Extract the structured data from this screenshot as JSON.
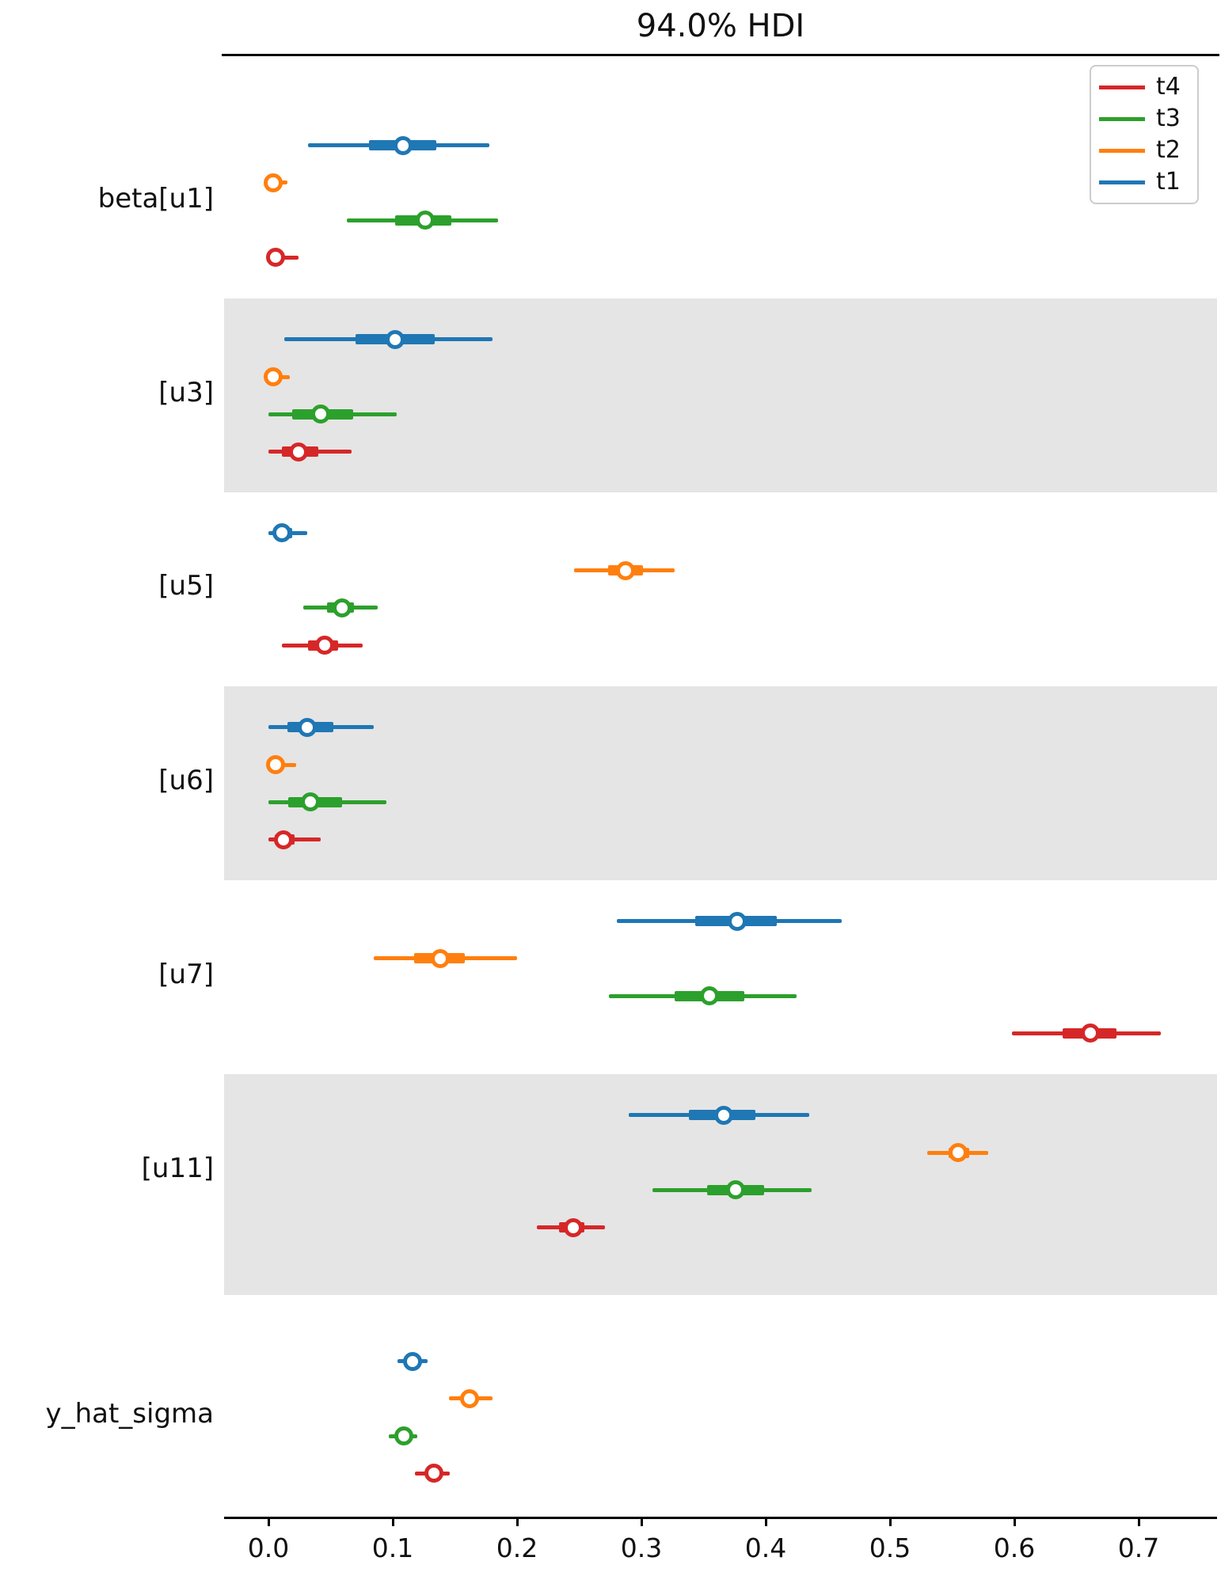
{
  "chart_data": {
    "type": "forest",
    "title": "94.0% HDI",
    "hdi_probability": "94.0%",
    "xlabel": "",
    "x_ticks": [
      0.0,
      0.1,
      0.2,
      0.3,
      0.4,
      0.5,
      0.6,
      0.7
    ],
    "xlim": [
      -0.036,
      0.763
    ],
    "grid": false,
    "legend_position": "top-right",
    "series_colors": {
      "t1": "#1f77b4",
      "t2": "#ff7f0e",
      "t3": "#2ca02c",
      "t4": "#d62728"
    },
    "legend": {
      "items": [
        {
          "label": "t4",
          "color": "#d62728"
        },
        {
          "label": "t3",
          "color": "#2ca02c"
        },
        {
          "label": "t2",
          "color": "#ff7f0e"
        },
        {
          "label": "t1",
          "color": "#1f77b4"
        }
      ]
    },
    "band_color": "#e5e5e5",
    "groups": [
      {
        "label": "beta[u1]",
        "shaded": false,
        "rows": [
          {
            "series": "t1",
            "hdi": [
              0.032,
              0.178
            ],
            "quartile": [
              0.081,
              0.135
            ],
            "point": 0.108
          },
          {
            "series": "t2",
            "hdi": [
              0.001,
              0.015
            ],
            "quartile": [
              0.002,
              0.008
            ],
            "point": 0.004
          },
          {
            "series": "t3",
            "hdi": [
              0.063,
              0.185
            ],
            "quartile": [
              0.102,
              0.147
            ],
            "point": 0.126
          },
          {
            "series": "t4",
            "hdi": [
              0.0,
              0.024
            ],
            "quartile": [
              0.003,
              0.011
            ],
            "point": 0.006
          }
        ]
      },
      {
        "label": "[u3]",
        "shaded": true,
        "rows": [
          {
            "series": "t1",
            "hdi": [
              0.013,
              0.18
            ],
            "quartile": [
              0.07,
              0.134
            ],
            "point": 0.102
          },
          {
            "series": "t2",
            "hdi": [
              0.001,
              0.017
            ],
            "quartile": [
              0.002,
              0.008
            ],
            "point": 0.004
          },
          {
            "series": "t3",
            "hdi": [
              0.0,
              0.103
            ],
            "quartile": [
              0.019,
              0.068
            ],
            "point": 0.042
          },
          {
            "series": "t4",
            "hdi": [
              0.0,
              0.067
            ],
            "quartile": [
              0.011,
              0.04
            ],
            "point": 0.024
          }
        ]
      },
      {
        "label": "[u5]",
        "shaded": false,
        "rows": [
          {
            "series": "t1",
            "hdi": [
              0.0,
              0.031
            ],
            "quartile": [
              0.005,
              0.019
            ],
            "point": 0.011
          },
          {
            "series": "t2",
            "hdi": [
              0.246,
              0.327
            ],
            "quartile": [
              0.273,
              0.301
            ],
            "point": 0.287
          },
          {
            "series": "t3",
            "hdi": [
              0.028,
              0.088
            ],
            "quartile": [
              0.047,
              0.069
            ],
            "point": 0.059
          },
          {
            "series": "t4",
            "hdi": [
              0.011,
              0.076
            ],
            "quartile": [
              0.032,
              0.056
            ],
            "point": 0.045
          }
        ]
      },
      {
        "label": "[u6]",
        "shaded": true,
        "rows": [
          {
            "series": "t1",
            "hdi": [
              0.0,
              0.085
            ],
            "quartile": [
              0.015,
              0.052
            ],
            "point": 0.031
          },
          {
            "series": "t2",
            "hdi": [
              0.001,
              0.022
            ],
            "quartile": [
              0.002,
              0.009
            ],
            "point": 0.006
          },
          {
            "series": "t3",
            "hdi": [
              0.0,
              0.095
            ],
            "quartile": [
              0.016,
              0.059
            ],
            "point": 0.034
          },
          {
            "series": "t4",
            "hdi": [
              0.0,
              0.042
            ],
            "quartile": [
              0.005,
              0.021
            ],
            "point": 0.012
          }
        ]
      },
      {
        "label": "[u7]",
        "shaded": false,
        "rows": [
          {
            "series": "t1",
            "hdi": [
              0.28,
              0.461
            ],
            "quartile": [
              0.343,
              0.409
            ],
            "point": 0.377
          },
          {
            "series": "t2",
            "hdi": [
              0.085,
              0.2
            ],
            "quartile": [
              0.117,
              0.158
            ],
            "point": 0.138
          },
          {
            "series": "t3",
            "hdi": [
              0.274,
              0.425
            ],
            "quartile": [
              0.327,
              0.383
            ],
            "point": 0.355
          },
          {
            "series": "t4",
            "hdi": [
              0.598,
              0.718
            ],
            "quartile": [
              0.639,
              0.682
            ],
            "point": 0.661
          }
        ]
      },
      {
        "label": "[u11]",
        "shaded": true,
        "rows": [
          {
            "series": "t1",
            "hdi": [
              0.29,
              0.435
            ],
            "quartile": [
              0.338,
              0.392
            ],
            "point": 0.366
          },
          {
            "series": "t2",
            "hdi": [
              0.53,
              0.579
            ],
            "quartile": [
              0.547,
              0.564
            ],
            "point": 0.555
          },
          {
            "series": "t3",
            "hdi": [
              0.309,
              0.437
            ],
            "quartile": [
              0.353,
              0.399
            ],
            "point": 0.376
          },
          {
            "series": "t4",
            "hdi": [
              0.216,
              0.271
            ],
            "quartile": [
              0.234,
              0.254
            ],
            "point": 0.245
          }
        ]
      },
      {
        "label": "y_hat_sigma",
        "shaded": false,
        "rows": [
          {
            "series": "t1",
            "hdi": [
              0.104,
              0.128
            ],
            "quartile": [
              0.113,
              0.121
            ],
            "point": 0.116
          },
          {
            "series": "t2",
            "hdi": [
              0.145,
              0.18
            ],
            "quartile": [
              0.157,
              0.168
            ],
            "point": 0.162
          },
          {
            "series": "t3",
            "hdi": [
              0.097,
              0.12
            ],
            "quartile": [
              0.104,
              0.113
            ],
            "point": 0.109
          },
          {
            "series": "t4",
            "hdi": [
              0.118,
              0.146
            ],
            "quartile": [
              0.127,
              0.138
            ],
            "point": 0.133
          }
        ]
      }
    ]
  }
}
